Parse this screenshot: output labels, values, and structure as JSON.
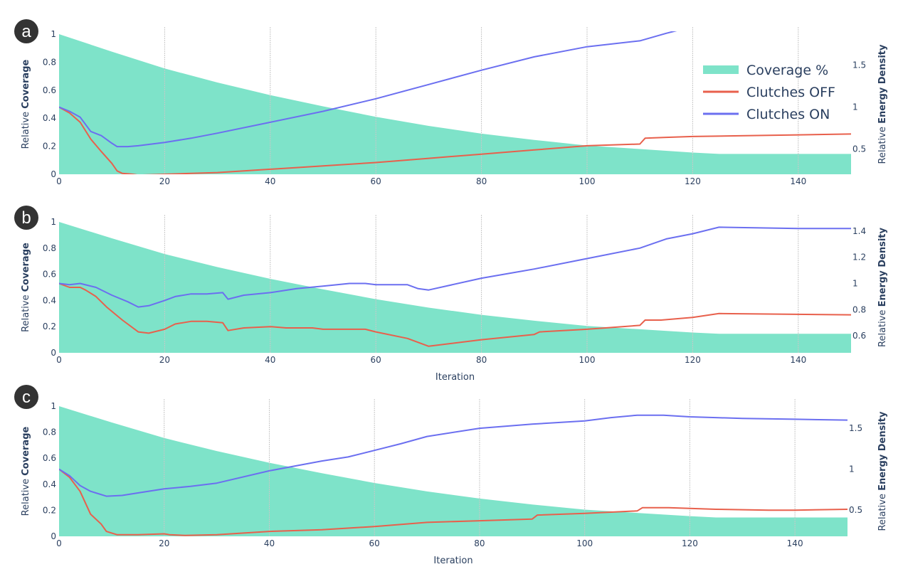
{
  "chart_data": [
    {
      "panel_label": "a",
      "type": "line",
      "y_left_label": {
        "prefix": "Relative",
        "bold": "Coverage"
      },
      "y_right_label": {
        "prefix": "Relative",
        "bold": "Energy Density"
      },
      "xlabel": "",
      "xlim": [
        0,
        150
      ],
      "xticks": [
        0,
        20,
        40,
        60,
        80,
        100,
        120,
        140
      ],
      "ylim_left": [
        0,
        1
      ],
      "yticks_left": [
        0,
        0.2,
        0.4,
        0.6,
        0.8,
        1
      ],
      "ytick_labels_left": [
        "0",
        "0.2",
        "0.4",
        "0.6",
        "0.8",
        "1"
      ],
      "ylim_right": [
        0.2,
        1.87
      ],
      "yticks_right": [
        0.5,
        1,
        1.5
      ],
      "ytick_labels_right": [
        "0.5",
        "1",
        "1.5"
      ],
      "legend": {
        "placement": "top-right",
        "entries": [
          "Coverage %",
          "Clutches OFF",
          "Clutches ON"
        ]
      },
      "series": [
        {
          "name": "Coverage %",
          "kind": "area",
          "axis": "left",
          "color": "#7ee3c9",
          "x": [
            0,
            10,
            20,
            30,
            40,
            50,
            60,
            70,
            80,
            90,
            100,
            110,
            120,
            125,
            150
          ],
          "y": [
            1.0,
            0.875,
            0.755,
            0.655,
            0.565,
            0.485,
            0.41,
            0.345,
            0.29,
            0.245,
            0.205,
            0.18,
            0.155,
            0.145,
            0.145
          ]
        },
        {
          "name": "Clutches OFF",
          "kind": "line",
          "axis": "right",
          "color": "#e8604c",
          "x": [
            0,
            2,
            4,
            6,
            8,
            10,
            11,
            12,
            14,
            15,
            20,
            25,
            30,
            40,
            45,
            50,
            60,
            70,
            80,
            90,
            100,
            110,
            111,
            115,
            120,
            130,
            140,
            150
          ],
          "y": [
            1.0,
            0.93,
            0.82,
            0.62,
            0.47,
            0.33,
            0.24,
            0.21,
            0.2,
            0.19,
            0.2,
            0.21,
            0.22,
            0.26,
            0.28,
            0.3,
            0.34,
            0.39,
            0.44,
            0.49,
            0.54,
            0.56,
            0.63,
            0.64,
            0.65,
            0.66,
            0.67,
            0.68
          ]
        },
        {
          "name": "Clutches ON",
          "kind": "line",
          "axis": "right",
          "color": "#6b6ff0",
          "x": [
            0,
            2,
            4,
            6,
            8,
            10,
            11,
            13,
            15,
            20,
            25,
            30,
            40,
            50,
            60,
            70,
            80,
            90,
            100,
            110,
            115,
            120,
            125,
            140,
            150
          ],
          "y": [
            1.0,
            0.95,
            0.88,
            0.71,
            0.66,
            0.57,
            0.53,
            0.53,
            0.54,
            0.58,
            0.63,
            0.69,
            0.82,
            0.95,
            1.1,
            1.27,
            1.44,
            1.6,
            1.72,
            1.79,
            1.88,
            1.96,
            1.98,
            1.98,
            1.99
          ]
        }
      ]
    },
    {
      "panel_label": "b",
      "type": "line",
      "y_left_label": {
        "prefix": "Relative",
        "bold": "Coverage"
      },
      "y_right_label": {
        "prefix": "Relative",
        "bold": "Energy Density"
      },
      "xlabel": "Iteration",
      "xlim": [
        0,
        150
      ],
      "xticks": [
        0,
        20,
        40,
        60,
        80,
        100,
        120,
        140
      ],
      "ylim_left": [
        0,
        1
      ],
      "yticks_left": [
        0,
        0.2,
        0.4,
        0.6,
        0.8,
        1
      ],
      "ytick_labels_left": [
        "0",
        "0.2",
        "0.4",
        "0.6",
        "0.8",
        "1"
      ],
      "ylim_right": [
        0.47,
        1.47
      ],
      "yticks_right": [
        0.6,
        0.8,
        1,
        1.2,
        1.4
      ],
      "ytick_labels_right": [
        "0.6",
        "0.8",
        "1",
        "1.2",
        "1.4"
      ],
      "series": [
        {
          "name": "Coverage %",
          "kind": "area",
          "axis": "left",
          "color": "#7ee3c9",
          "x": [
            0,
            10,
            20,
            30,
            40,
            50,
            60,
            70,
            80,
            90,
            100,
            110,
            120,
            125,
            150
          ],
          "y": [
            1.0,
            0.875,
            0.755,
            0.655,
            0.565,
            0.485,
            0.41,
            0.345,
            0.29,
            0.245,
            0.205,
            0.18,
            0.155,
            0.145,
            0.145
          ]
        },
        {
          "name": "Clutches OFF",
          "kind": "line",
          "axis": "right",
          "color": "#e8604c",
          "x": [
            0,
            2,
            4,
            5,
            7,
            9,
            12,
            15,
            17,
            20,
            22,
            25,
            28,
            31,
            32,
            35,
            40,
            43,
            48,
            50,
            58,
            60,
            66,
            70,
            80,
            90,
            91,
            100,
            110,
            111,
            114,
            120,
            125,
            150
          ],
          "y": [
            1.0,
            0.97,
            0.97,
            0.95,
            0.9,
            0.82,
            0.72,
            0.63,
            0.62,
            0.65,
            0.69,
            0.71,
            0.71,
            0.7,
            0.64,
            0.66,
            0.67,
            0.66,
            0.66,
            0.65,
            0.65,
            0.63,
            0.58,
            0.52,
            0.57,
            0.61,
            0.63,
            0.65,
            0.68,
            0.72,
            0.72,
            0.74,
            0.77,
            0.76
          ]
        },
        {
          "name": "Clutches ON",
          "kind": "line",
          "axis": "right",
          "color": "#6b6ff0",
          "x": [
            0,
            2,
            4,
            7,
            10,
            13,
            15,
            17,
            20,
            22,
            25,
            28,
            31,
            32,
            35,
            40,
            45,
            50,
            55,
            58,
            60,
            66,
            68,
            70,
            80,
            90,
            100,
            110,
            115,
            120,
            125,
            140,
            150
          ],
          "y": [
            1.0,
            0.99,
            1.0,
            0.97,
            0.91,
            0.86,
            0.82,
            0.83,
            0.87,
            0.9,
            0.92,
            0.92,
            0.93,
            0.88,
            0.91,
            0.93,
            0.96,
            0.98,
            1.0,
            1.0,
            0.99,
            0.99,
            0.96,
            0.95,
            1.04,
            1.11,
            1.19,
            1.27,
            1.34,
            1.38,
            1.43,
            1.42,
            1.42
          ]
        }
      ]
    },
    {
      "panel_label": "c",
      "type": "line",
      "y_left_label": {
        "prefix": "Relative",
        "bold": "Coverage"
      },
      "y_right_label": {
        "prefix": "Relative",
        "bold": "Energy Density"
      },
      "xlabel": "Iteration",
      "xlim": [
        0,
        150
      ],
      "xticks": [
        0,
        20,
        40,
        60,
        80,
        100,
        120,
        140
      ],
      "ylim_left": [
        0,
        1
      ],
      "yticks_left": [
        0,
        0.2,
        0.4,
        0.6,
        0.8,
        1
      ],
      "ytick_labels_left": [
        "0",
        "0.2",
        "0.4",
        "0.6",
        "0.8",
        "1"
      ],
      "ylim_right": [
        0.18,
        1.77
      ],
      "yticks_right": [
        0.5,
        1,
        1.5
      ],
      "ytick_labels_right": [
        "0.5",
        "1",
        "1.5"
      ],
      "series": [
        {
          "name": "Coverage %",
          "kind": "area",
          "axis": "left",
          "color": "#7ee3c9",
          "x": [
            0,
            10,
            20,
            30,
            40,
            50,
            60,
            70,
            80,
            90,
            100,
            110,
            120,
            125,
            150
          ],
          "y": [
            1.0,
            0.875,
            0.755,
            0.655,
            0.565,
            0.485,
            0.41,
            0.345,
            0.29,
            0.245,
            0.205,
            0.18,
            0.155,
            0.145,
            0.145
          ]
        },
        {
          "name": "Clutches OFF",
          "kind": "line",
          "axis": "right",
          "color": "#e8604c",
          "x": [
            0,
            2,
            4,
            6,
            8,
            9,
            11,
            15,
            20,
            21,
            24,
            30,
            40,
            50,
            60,
            70,
            80,
            90,
            91,
            100,
            110,
            111,
            116,
            125,
            135,
            140,
            150
          ],
          "y": [
            1.0,
            0.9,
            0.73,
            0.45,
            0.33,
            0.24,
            0.2,
            0.2,
            0.21,
            0.2,
            0.19,
            0.2,
            0.24,
            0.26,
            0.3,
            0.35,
            0.37,
            0.39,
            0.44,
            0.46,
            0.49,
            0.53,
            0.53,
            0.51,
            0.5,
            0.5,
            0.51
          ]
        },
        {
          "name": "Clutches ON",
          "kind": "line",
          "axis": "right",
          "color": "#6b6ff0",
          "x": [
            0,
            2,
            4,
            6,
            7,
            9,
            12,
            15,
            20,
            25,
            30,
            40,
            45,
            50,
            55,
            60,
            65,
            70,
            80,
            90,
            95,
            100,
            105,
            110,
            115,
            120,
            125,
            130,
            140,
            150
          ],
          "y": [
            1.0,
            0.92,
            0.8,
            0.73,
            0.71,
            0.67,
            0.68,
            0.71,
            0.76,
            0.79,
            0.83,
            0.98,
            1.04,
            1.1,
            1.15,
            1.23,
            1.31,
            1.4,
            1.5,
            1.55,
            1.57,
            1.59,
            1.63,
            1.66,
            1.66,
            1.64,
            1.63,
            1.62,
            1.61,
            1.6
          ]
        }
      ]
    }
  ]
}
